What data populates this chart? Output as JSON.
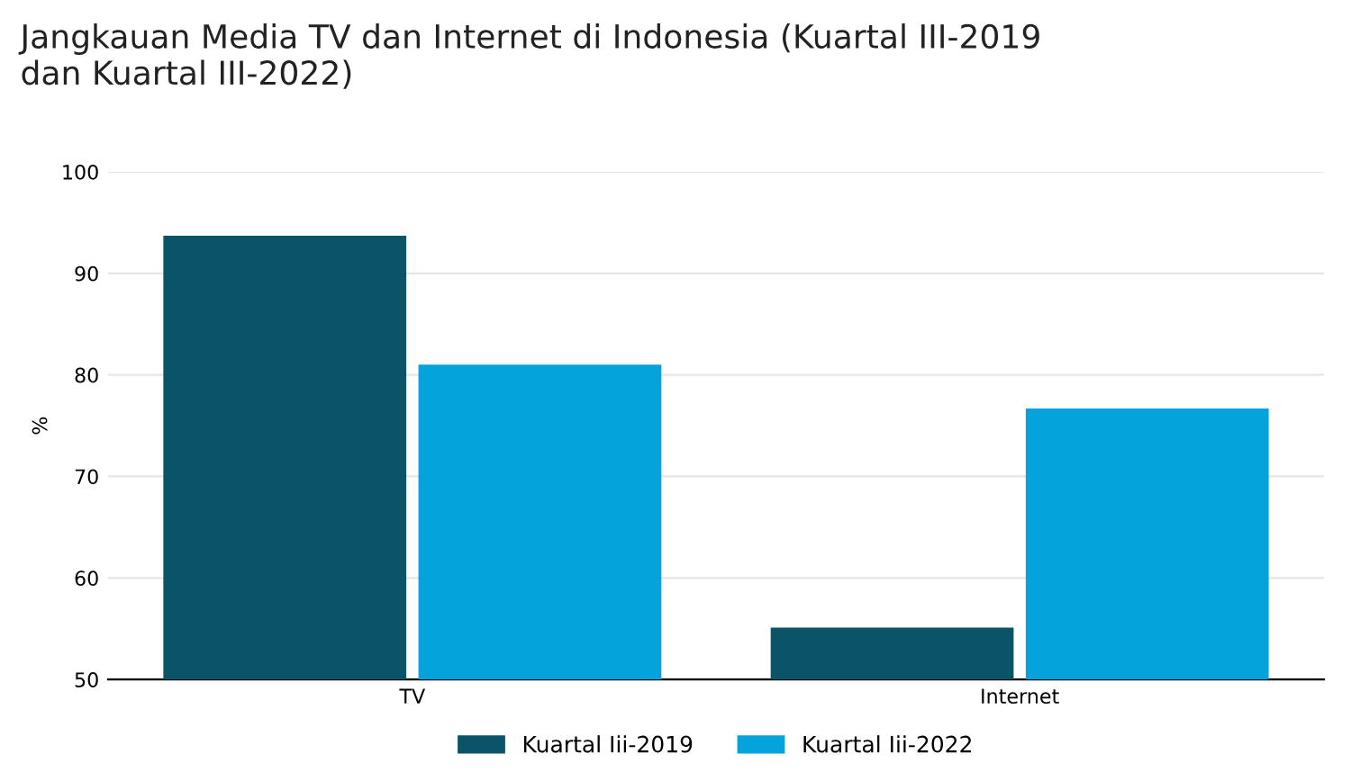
{
  "chart_data": {
    "type": "bar",
    "title": "Jangkauan Media TV dan Internet di Indonesia (Kuartal III-2019\ndan Kuartal III-2022)",
    "ylabel": "%",
    "categories": [
      "TV",
      "Internet"
    ],
    "series": [
      {
        "name": "Kuartal Iii-2019",
        "color": "#0b5366",
        "values": [
          93.7,
          55.1
        ]
      },
      {
        "name": "Kuartal Iii-2022",
        "color": "#05a3dc",
        "values": [
          81.0,
          76.7
        ]
      }
    ],
    "ylim": [
      50,
      100
    ],
    "yticks": [
      50,
      60,
      70,
      80,
      90,
      100
    ],
    "grid": "y",
    "legend": "bottom"
  }
}
